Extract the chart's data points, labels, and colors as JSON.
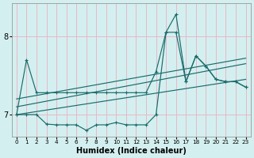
{
  "xlabel": "Humidex (Indice chaleur)",
  "bg_color": "#d4efef",
  "grid_color": "#e8b8c8",
  "line_color": "#1a6b6b",
  "xlim": [
    -0.5,
    23.5
  ],
  "ylim": [
    6.72,
    8.42
  ],
  "yticks": [
    7,
    8
  ],
  "lower_x": [
    0,
    1,
    2,
    3,
    4,
    5,
    6,
    7,
    8,
    9,
    10,
    11,
    12,
    13,
    14,
    15,
    16,
    17,
    18,
    19,
    20,
    21,
    22,
    23
  ],
  "lower_y": [
    7.0,
    7.0,
    7.0,
    6.88,
    6.87,
    6.87,
    6.87,
    6.8,
    6.87,
    6.87,
    6.9,
    6.87,
    6.87,
    6.87,
    7.0,
    8.05,
    8.05,
    7.42,
    7.75,
    7.62,
    7.45,
    7.42,
    7.42,
    7.35
  ],
  "upper_x": [
    0,
    1,
    2,
    3,
    4,
    5,
    6,
    7,
    8,
    9,
    10,
    11,
    12,
    13,
    14,
    15,
    16,
    17,
    18,
    19,
    20,
    21,
    22,
    23
  ],
  "upper_y": [
    7.0,
    7.7,
    7.28,
    7.28,
    7.28,
    7.28,
    7.28,
    7.28,
    7.28,
    7.28,
    7.28,
    7.28,
    7.28,
    7.28,
    7.55,
    8.05,
    8.28,
    7.42,
    7.75,
    7.62,
    7.45,
    7.42,
    7.42,
    7.35
  ],
  "trend1_x": [
    0,
    23
  ],
  "trend1_y": [
    7.0,
    7.45
  ],
  "trend2_x": [
    0,
    23
  ],
  "trend2_y": [
    7.1,
    7.65
  ],
  "trend3_x": [
    0,
    23
  ],
  "trend3_y": [
    7.2,
    7.72
  ]
}
